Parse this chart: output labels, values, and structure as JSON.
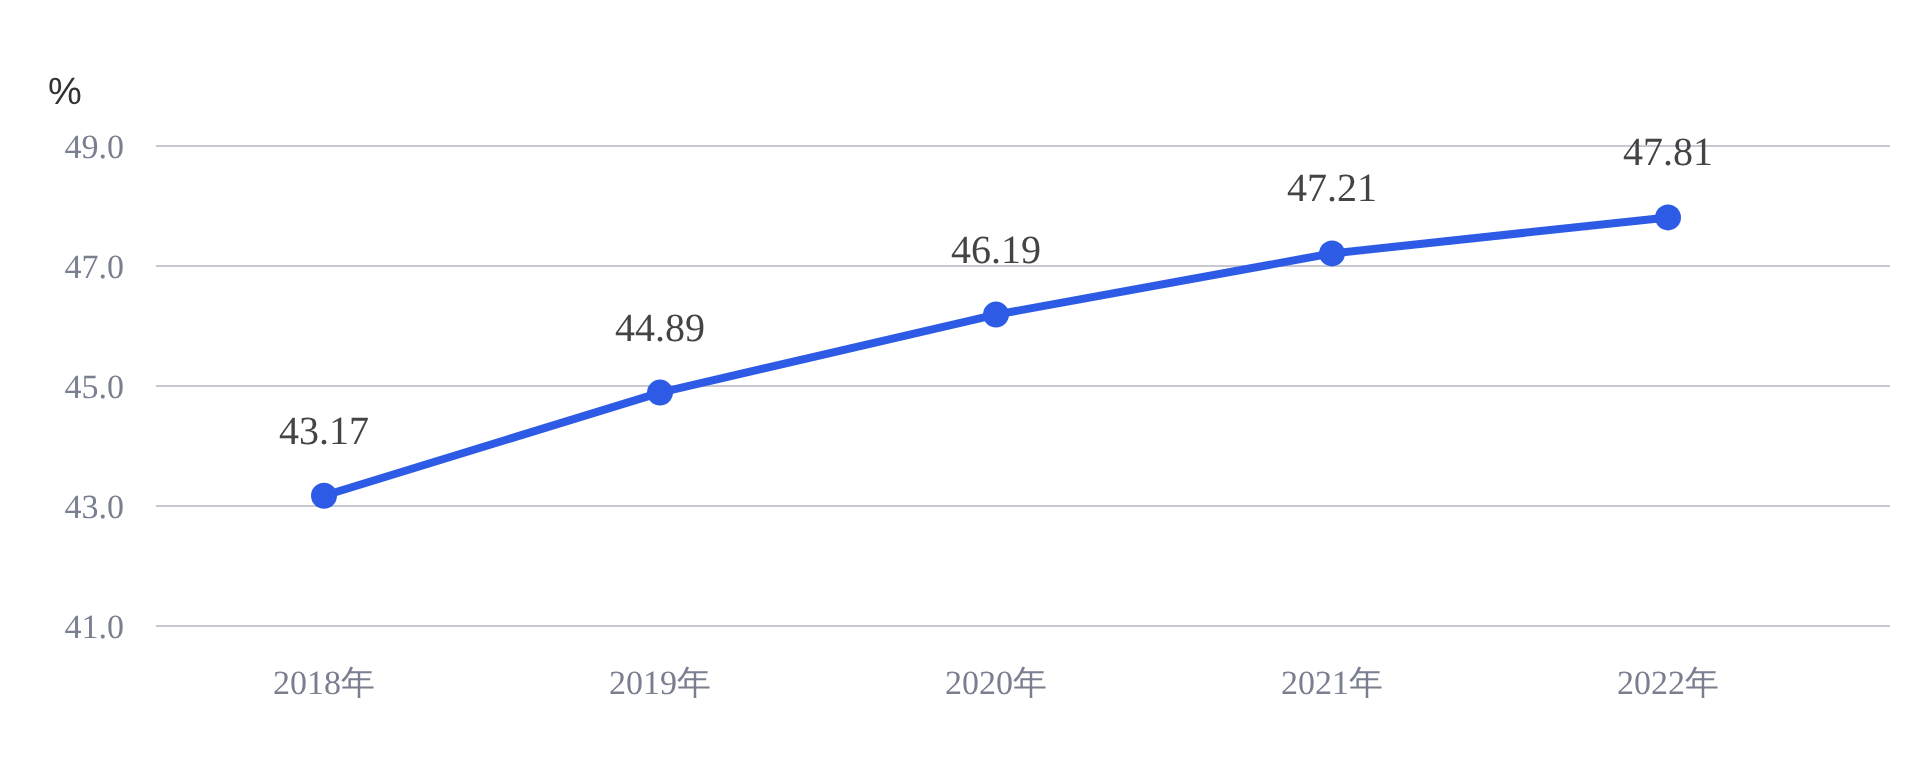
{
  "chart_data": {
    "type": "line",
    "ylabel": "%",
    "categories": [
      "2018年",
      "2019年",
      "2020年",
      "2021年",
      "2022年"
    ],
    "series": [
      {
        "color": "#2d5be6",
        "values": [
          43.17,
          44.89,
          46.19,
          47.21,
          47.81
        ]
      }
    ],
    "ylim": [
      41,
      49
    ],
    "yticks": [
      {
        "value": 41,
        "label": "41.0"
      },
      {
        "value": 43,
        "label": "43.0"
      },
      {
        "value": 45,
        "label": "45.0"
      },
      {
        "value": 47,
        "label": "47.0"
      },
      {
        "value": 49,
        "label": "49.0"
      }
    ],
    "grid": "y",
    "marker": "circle",
    "line_style": "solid",
    "data_labels": true
  }
}
